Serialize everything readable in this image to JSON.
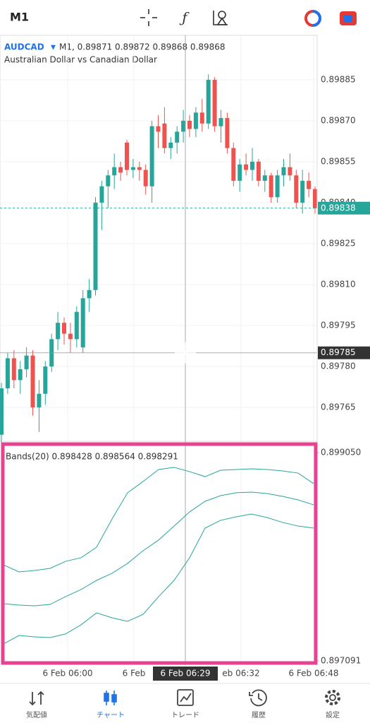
{
  "header": {
    "timeframe": "M1"
  },
  "chart": {
    "symbol": "AUDCAD",
    "ohlc_line": "M1, 0.89871 0.89872 0.89868 0.89868",
    "description": "Australian Dollar vs Canadian Dollar",
    "up_color": "#26a69a",
    "down_color": "#ef5350",
    "ylim": [
      0.897526,
      0.899013
    ],
    "yticks": [
      0.89885,
      {
        "value": 0.8987,
        "label": "0.89870"
      },
      0.89855,
      {
        "value": 0.8984,
        "label": "0.89840"
      },
      0.89825,
      {
        "value": 0.8981,
        "label": "0.89810"
      },
      0.89795,
      {
        "value": 0.8978,
        "label": "0.89780"
      },
      0.89765
    ],
    "current_price": 0.89838,
    "crosshair_price": 0.89785,
    "candles": [
      {
        "o": 0.89755,
        "h": 0.89774,
        "l": 0.89752,
        "c": 0.89772
      },
      {
        "o": 0.89772,
        "h": 0.89785,
        "l": 0.8977,
        "c": 0.89783
      },
      {
        "o": 0.89783,
        "h": 0.89786,
        "l": 0.89772,
        "c": 0.89775
      },
      {
        "o": 0.89775,
        "h": 0.89782,
        "l": 0.8977,
        "c": 0.89779
      },
      {
        "o": 0.89779,
        "h": 0.89787,
        "l": 0.89776,
        "c": 0.89784
      },
      {
        "o": 0.89784,
        "h": 0.89786,
        "l": 0.89762,
        "c": 0.89765
      },
      {
        "o": 0.89765,
        "h": 0.89775,
        "l": 0.89756,
        "c": 0.8977
      },
      {
        "o": 0.8977,
        "h": 0.89782,
        "l": 0.89766,
        "c": 0.8978
      },
      {
        "o": 0.8978,
        "h": 0.89792,
        "l": 0.89778,
        "c": 0.8979
      },
      {
        "o": 0.8979,
        "h": 0.898,
        "l": 0.89786,
        "c": 0.89796
      },
      {
        "o": 0.89796,
        "h": 0.89798,
        "l": 0.89788,
        "c": 0.89792
      },
      {
        "o": 0.89792,
        "h": 0.89796,
        "l": 0.89785,
        "c": 0.8979
      },
      {
        "o": 0.8979,
        "h": 0.89802,
        "l": 0.89787,
        "c": 0.898
      },
      {
        "o": 0.89787,
        "h": 0.89808,
        "l": 0.89785,
        "c": 0.89805
      },
      {
        "o": 0.89805,
        "h": 0.89812,
        "l": 0.898,
        "c": 0.89808
      },
      {
        "o": 0.89808,
        "h": 0.89842,
        "l": 0.89806,
        "c": 0.8984
      },
      {
        "o": 0.8984,
        "h": 0.89848,
        "l": 0.8983,
        "c": 0.89846
      },
      {
        "o": 0.89846,
        "h": 0.89852,
        "l": 0.89838,
        "c": 0.8985
      },
      {
        "o": 0.8985,
        "h": 0.89858,
        "l": 0.89845,
        "c": 0.89853
      },
      {
        "o": 0.89853,
        "h": 0.89855,
        "l": 0.89848,
        "c": 0.89851
      },
      {
        "o": 0.89862,
        "h": 0.89863,
        "l": 0.8985,
        "c": 0.89852
      },
      {
        "o": 0.89852,
        "h": 0.89856,
        "l": 0.89849,
        "c": 0.89853
      },
      {
        "o": 0.89853,
        "h": 0.89855,
        "l": 0.89848,
        "c": 0.89852
      },
      {
        "o": 0.89852,
        "h": 0.89854,
        "l": 0.89843,
        "c": 0.89846
      },
      {
        "o": 0.89846,
        "h": 0.8987,
        "l": 0.8984,
        "c": 0.89868
      },
      {
        "o": 0.89868,
        "h": 0.89872,
        "l": 0.8986,
        "c": 0.89866
      },
      {
        "o": 0.89869,
        "h": 0.89875,
        "l": 0.89858,
        "c": 0.8986
      },
      {
        "o": 0.8986,
        "h": 0.89864,
        "l": 0.89856,
        "c": 0.89862
      },
      {
        "o": 0.89862,
        "h": 0.89868,
        "l": 0.89858,
        "c": 0.89866
      },
      {
        "o": 0.89866,
        "h": 0.89874,
        "l": 0.89862,
        "c": 0.8987
      },
      {
        "o": 0.8987,
        "h": 0.89872,
        "l": 0.89864,
        "c": 0.89867
      },
      {
        "o": 0.89867,
        "h": 0.89875,
        "l": 0.89864,
        "c": 0.89873
      },
      {
        "o": 0.89873,
        "h": 0.89878,
        "l": 0.89866,
        "c": 0.89869
      },
      {
        "o": 0.89869,
        "h": 0.89887,
        "l": 0.89867,
        "c": 0.89885
      },
      {
        "o": 0.89885,
        "h": 0.89886,
        "l": 0.89866,
        "c": 0.89868
      },
      {
        "o": 0.89868,
        "h": 0.89874,
        "l": 0.89862,
        "c": 0.89871
      },
      {
        "o": 0.89871,
        "h": 0.89873,
        "l": 0.89858,
        "c": 0.8986
      },
      {
        "o": 0.8986,
        "h": 0.89862,
        "l": 0.89846,
        "c": 0.89848
      },
      {
        "o": 0.89848,
        "h": 0.89856,
        "l": 0.89844,
        "c": 0.89854
      },
      {
        "o": 0.89854,
        "h": 0.89858,
        "l": 0.8985,
        "c": 0.89852
      },
      {
        "o": 0.89852,
        "h": 0.8986,
        "l": 0.89848,
        "c": 0.89855
      },
      {
        "o": 0.89855,
        "h": 0.89856,
        "l": 0.89846,
        "c": 0.89848
      },
      {
        "o": 0.89848,
        "h": 0.89852,
        "l": 0.89844,
        "c": 0.8985
      },
      {
        "o": 0.8985,
        "h": 0.89851,
        "l": 0.8984,
        "c": 0.89842
      },
      {
        "o": 0.89842,
        "h": 0.89852,
        "l": 0.8984,
        "c": 0.8985
      },
      {
        "o": 0.8985,
        "h": 0.89856,
        "l": 0.89846,
        "c": 0.89853
      },
      {
        "o": 0.89853,
        "h": 0.89858,
        "l": 0.89848,
        "c": 0.8985
      },
      {
        "o": 0.8985,
        "h": 0.89852,
        "l": 0.89838,
        "c": 0.8984
      },
      {
        "o": 0.8984,
        "h": 0.89852,
        "l": 0.89836,
        "c": 0.89848
      },
      {
        "o": 0.89848,
        "h": 0.89851,
        "l": 0.89842,
        "c": 0.89845
      },
      {
        "o": 0.89845,
        "h": 0.89846,
        "l": 0.89836,
        "c": 0.89838
      }
    ]
  },
  "bands": {
    "label": "Bands(20) 0.898428 0.898564 0.898291",
    "color": "#26a69a",
    "ylim": [
      0.897091,
      0.89905
    ],
    "yticks": [
      {
        "value": 0.89905,
        "label": "0.899050"
      },
      0.897091
    ],
    "upper": [
      0.897994,
      0.897928,
      0.897941,
      0.897961,
      0.898027,
      0.898061,
      0.89816,
      0.898426,
      0.898672,
      0.898778,
      0.898891,
      0.898911,
      0.898871,
      0.898824,
      0.898884,
      0.898891,
      0.898897,
      0.898891,
      0.898877,
      0.898857,
      0.898758
    ],
    "middle": [
      0.897629,
      0.897616,
      0.897609,
      0.897622,
      0.897695,
      0.897762,
      0.897848,
      0.897915,
      0.898008,
      0.898127,
      0.898227,
      0.898359,
      0.898492,
      0.898592,
      0.898645,
      0.898672,
      0.898678,
      0.898665,
      0.898638,
      0.898605,
      0.898559
    ],
    "lower": [
      0.897251,
      0.89733,
      0.897317,
      0.89731,
      0.897344,
      0.89743,
      0.897543,
      0.897496,
      0.897463,
      0.897529,
      0.897695,
      0.897848,
      0.898061,
      0.89834,
      0.898413,
      0.898446,
      0.898472,
      0.898439,
      0.898393,
      0.898359,
      0.89834
    ]
  },
  "time_axis": [
    "6 Feb 06:00",
    "6 Feb",
    "6 Feb 06:29",
    "eb 06:32",
    "6 Feb 06:48"
  ],
  "nav": [
    "気配値",
    "チャート",
    "トレード",
    "履歴",
    "設定"
  ]
}
